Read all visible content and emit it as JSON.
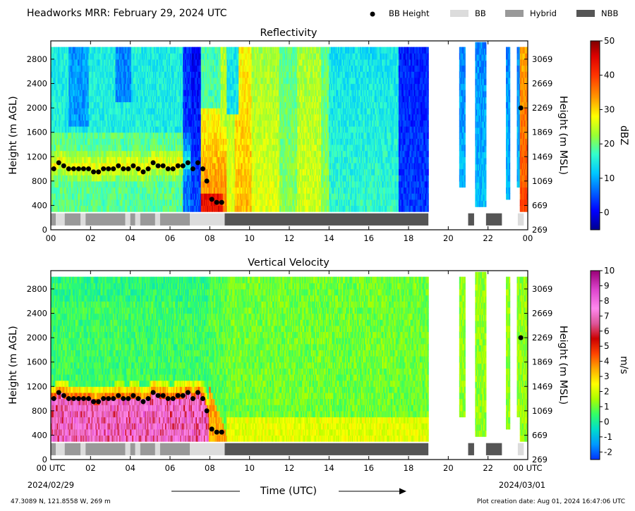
{
  "header": {
    "title": "Headworks MRR:  February 29, 2024 UTC",
    "legend": [
      {
        "label": "BB Height",
        "kind": "dot",
        "color": "#000000"
      },
      {
        "label": "BB",
        "kind": "box",
        "color": "#dcdcdc"
      },
      {
        "label": "Hybrid",
        "kind": "box",
        "color": "#999999"
      },
      {
        "label": "NBB",
        "kind": "box",
        "color": "#555555"
      }
    ]
  },
  "footer": {
    "location": "47.3089 N, 121.8558 W, 269 m",
    "creation": "Plot creation date: Aug 01, 2024 16:47:06 UTC",
    "xlabel": "Time (UTC)",
    "start_date": "2024/02/29",
    "end_date": "2024/03/01"
  },
  "chart_data": [
    {
      "type": "heatmap",
      "title": "Reflectivity",
      "xlabel": "Time (UTC)",
      "ylabel": "Height (m AGL)",
      "ylabel_right": "Height (m MSL)",
      "xlim": [
        0,
        24
      ],
      "ylim": [
        0,
        3100
      ],
      "x_ticks": [
        "00",
        "02",
        "04",
        "06",
        "08",
        "10",
        "12",
        "14",
        "16",
        "18",
        "20",
        "22",
        "00"
      ],
      "y_ticks": [
        0,
        400,
        800,
        1200,
        1600,
        2000,
        2400,
        2800
      ],
      "y_ticks_right": [
        269,
        669,
        1069,
        1469,
        1869,
        2269,
        2669,
        3069
      ],
      "colorbar": {
        "label": "dBZ",
        "min": -5,
        "max": 50,
        "ticks": [
          0,
          10,
          20,
          30,
          40,
          50
        ]
      },
      "bb_height": [
        [
          0.15,
          1000
        ],
        [
          0.4,
          1100
        ],
        [
          0.65,
          1050
        ],
        [
          0.9,
          1000
        ],
        [
          1.15,
          1000
        ],
        [
          1.4,
          1000
        ],
        [
          1.65,
          1000
        ],
        [
          1.9,
          1000
        ],
        [
          2.15,
          950
        ],
        [
          2.4,
          950
        ],
        [
          2.65,
          1000
        ],
        [
          2.9,
          1000
        ],
        [
          3.15,
          1000
        ],
        [
          3.4,
          1050
        ],
        [
          3.65,
          1000
        ],
        [
          3.9,
          1000
        ],
        [
          4.15,
          1050
        ],
        [
          4.4,
          1000
        ],
        [
          4.65,
          950
        ],
        [
          4.9,
          1000
        ],
        [
          5.15,
          1100
        ],
        [
          5.4,
          1050
        ],
        [
          5.65,
          1050
        ],
        [
          5.9,
          1000
        ],
        [
          6.15,
          1000
        ],
        [
          6.4,
          1050
        ],
        [
          6.65,
          1050
        ],
        [
          6.9,
          1100
        ],
        [
          7.15,
          1000
        ],
        [
          7.4,
          1100
        ],
        [
          7.65,
          1000
        ],
        [
          7.85,
          800
        ],
        [
          8.1,
          500
        ],
        [
          8.35,
          450
        ],
        [
          8.6,
          450
        ],
        [
          23.65,
          2000
        ]
      ],
      "bb_type": [
        {
          "start": 0.0,
          "end": 0.25,
          "type": "Hybrid"
        },
        {
          "start": 0.25,
          "end": 0.7,
          "type": "BB"
        },
        {
          "start": 0.7,
          "end": 1.5,
          "type": "Hybrid"
        },
        {
          "start": 1.5,
          "end": 1.75,
          "type": "BB"
        },
        {
          "start": 1.75,
          "end": 3.75,
          "type": "Hybrid"
        },
        {
          "start": 3.75,
          "end": 4.0,
          "type": "BB"
        },
        {
          "start": 4.0,
          "end": 4.25,
          "type": "Hybrid"
        },
        {
          "start": 4.25,
          "end": 4.5,
          "type": "BB"
        },
        {
          "start": 4.5,
          "end": 5.25,
          "type": "Hybrid"
        },
        {
          "start": 5.25,
          "end": 5.5,
          "type": "BB"
        },
        {
          "start": 5.5,
          "end": 7.0,
          "type": "Hybrid"
        },
        {
          "start": 7.0,
          "end": 8.75,
          "type": "BB"
        },
        {
          "start": 8.75,
          "end": 19.0,
          "type": "NBB"
        },
        {
          "start": 21.0,
          "end": 21.3,
          "type": "NBB"
        },
        {
          "start": 21.9,
          "end": 22.7,
          "type": "NBB"
        },
        {
          "start": 23.5,
          "end": 23.8,
          "type": "BB"
        }
      ]
    },
    {
      "type": "heatmap",
      "title": "Vertical Velocity",
      "xlabel": "Time (UTC)",
      "ylabel": "Height (m AGL)",
      "ylabel_right": "Height (m MSL)",
      "xlim": [
        0,
        24
      ],
      "ylim": [
        0,
        3100
      ],
      "x_ticks": [
        "00 UTC",
        "02",
        "04",
        "06",
        "08",
        "10",
        "12",
        "14",
        "16",
        "18",
        "20",
        "22",
        "00 UTC"
      ],
      "y_ticks": [
        0,
        400,
        800,
        1200,
        1600,
        2000,
        2400,
        2800
      ],
      "y_ticks_right": [
        269,
        669,
        1069,
        1469,
        1869,
        2269,
        2669,
        3069
      ],
      "colorbar": {
        "label": "m/s",
        "min": -2.5,
        "max": 10,
        "ticks": [
          -2,
          -1,
          0,
          1,
          2,
          3,
          4,
          5,
          6,
          7,
          8,
          9,
          10
        ]
      },
      "bb_height": [
        [
          0.15,
          1000
        ],
        [
          0.4,
          1100
        ],
        [
          0.65,
          1050
        ],
        [
          0.9,
          1000
        ],
        [
          1.15,
          1000
        ],
        [
          1.4,
          1000
        ],
        [
          1.65,
          1000
        ],
        [
          1.9,
          1000
        ],
        [
          2.15,
          950
        ],
        [
          2.4,
          950
        ],
        [
          2.65,
          1000
        ],
        [
          2.9,
          1000
        ],
        [
          3.15,
          1000
        ],
        [
          3.4,
          1050
        ],
        [
          3.65,
          1000
        ],
        [
          3.9,
          1000
        ],
        [
          4.15,
          1050
        ],
        [
          4.4,
          1000
        ],
        [
          4.65,
          950
        ],
        [
          4.9,
          1000
        ],
        [
          5.15,
          1100
        ],
        [
          5.4,
          1050
        ],
        [
          5.65,
          1050
        ],
        [
          5.9,
          1000
        ],
        [
          6.15,
          1000
        ],
        [
          6.4,
          1050
        ],
        [
          6.65,
          1050
        ],
        [
          6.9,
          1100
        ],
        [
          7.15,
          1000
        ],
        [
          7.4,
          1100
        ],
        [
          7.65,
          1000
        ],
        [
          7.85,
          800
        ],
        [
          8.1,
          500
        ],
        [
          8.35,
          450
        ],
        [
          8.6,
          450
        ],
        [
          23.65,
          2000
        ]
      ],
      "bb_type": [
        {
          "start": 0.0,
          "end": 0.25,
          "type": "Hybrid"
        },
        {
          "start": 0.25,
          "end": 0.7,
          "type": "BB"
        },
        {
          "start": 0.7,
          "end": 1.5,
          "type": "Hybrid"
        },
        {
          "start": 1.5,
          "end": 1.75,
          "type": "BB"
        },
        {
          "start": 1.75,
          "end": 3.75,
          "type": "Hybrid"
        },
        {
          "start": 3.75,
          "end": 4.0,
          "type": "BB"
        },
        {
          "start": 4.0,
          "end": 4.25,
          "type": "Hybrid"
        },
        {
          "start": 4.25,
          "end": 4.5,
          "type": "BB"
        },
        {
          "start": 4.5,
          "end": 5.25,
          "type": "Hybrid"
        },
        {
          "start": 5.25,
          "end": 5.5,
          "type": "BB"
        },
        {
          "start": 5.5,
          "end": 7.0,
          "type": "Hybrid"
        },
        {
          "start": 7.0,
          "end": 8.75,
          "type": "BB"
        },
        {
          "start": 8.75,
          "end": 19.0,
          "type": "NBB"
        },
        {
          "start": 21.0,
          "end": 21.3,
          "type": "NBB"
        },
        {
          "start": 21.9,
          "end": 22.7,
          "type": "NBB"
        },
        {
          "start": 23.5,
          "end": 23.8,
          "type": "BB"
        }
      ]
    }
  ]
}
